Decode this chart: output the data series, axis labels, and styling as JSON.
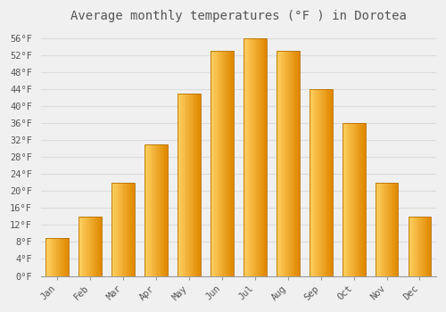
{
  "title": "Average monthly temperatures (°F ) in Dorotea",
  "months": [
    "Jan",
    "Feb",
    "Mar",
    "Apr",
    "May",
    "Jun",
    "Jul",
    "Aug",
    "Sep",
    "Oct",
    "Nov",
    "Dec"
  ],
  "values": [
    9,
    14,
    22,
    31,
    43,
    53,
    56,
    53,
    44,
    36,
    22,
    14
  ],
  "bar_color_main": "#FFAA00",
  "bar_color_left": "#FFD060",
  "bar_color_right": "#E08800",
  "bar_edge_color": "#B87000",
  "background_color": "#F0F0F0",
  "grid_color": "#DDDDDD",
  "text_color": "#555555",
  "title_fontsize": 10,
  "tick_fontsize": 7.5,
  "ylabel_values": [
    0,
    4,
    8,
    12,
    16,
    20,
    24,
    28,
    32,
    36,
    40,
    44,
    48,
    52,
    56
  ],
  "ylim": [
    0,
    58
  ]
}
